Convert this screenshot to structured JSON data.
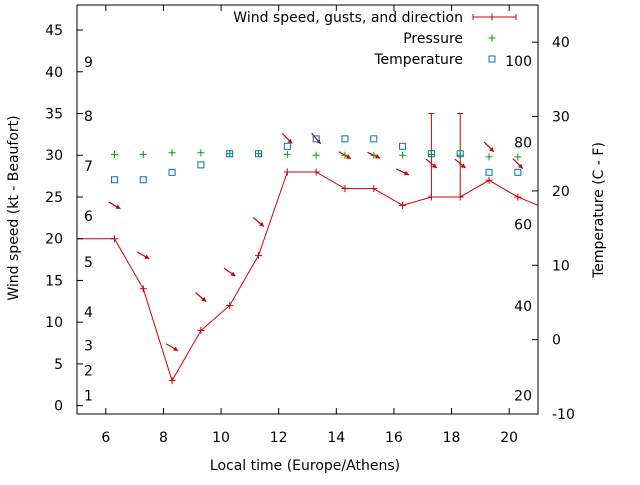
{
  "chart_data": {
    "type": "line",
    "xlabel": "Local time (Europe/Athens)",
    "ylabel": "Wind speed (kt - Beaufort)",
    "y2label": "Temperature (C - F)",
    "xlim": [
      5,
      21
    ],
    "ylim": [
      -1,
      48
    ],
    "y2lim": [
      -10,
      45
    ],
    "grid": false,
    "legend_position": "top-right",
    "xticks": [
      6,
      8,
      10,
      12,
      14,
      16,
      18,
      20
    ],
    "yticks": [
      0,
      5,
      10,
      15,
      20,
      25,
      30,
      35,
      40,
      45
    ],
    "y2ticks": [
      -10,
      0,
      10,
      20,
      30,
      40
    ],
    "beaufort_labels": [
      {
        "text": "1",
        "y": 1.2
      },
      {
        "text": "2",
        "y": 4.2
      },
      {
        "text": "3",
        "y": 7.2
      },
      {
        "text": "4",
        "y": 11.2
      },
      {
        "text": "5",
        "y": 17.2
      },
      {
        "text": "6",
        "y": 22.7
      },
      {
        "text": "7",
        "y": 28.7
      },
      {
        "text": "8",
        "y": 34.7
      },
      {
        "text": "9",
        "y": 41.2
      }
    ],
    "fahrenheit_labels": [
      {
        "text": "20",
        "y2": -7.5
      },
      {
        "text": "40",
        "y2": 4.5
      },
      {
        "text": "60",
        "y2": 15.5
      },
      {
        "text": "80",
        "y2": 26.5
      },
      {
        "text": "100",
        "y2": 37.5
      }
    ],
    "series": [
      {
        "name": "Wind speed, gusts, and direction",
        "color": "#cc0000",
        "x": [
          5,
          6.3,
          7.3,
          8.3,
          9.3,
          10.3,
          11.3,
          12.3,
          13.3,
          14.3,
          15.3,
          16.3,
          17.3,
          18.3,
          19.3,
          20.3,
          21
        ],
        "values": [
          20,
          20,
          14,
          3,
          9,
          12,
          18,
          28,
          28,
          26,
          26,
          24,
          25,
          25,
          27,
          25,
          24
        ],
        "gusts": [
          null,
          null,
          null,
          null,
          null,
          null,
          null,
          null,
          null,
          null,
          null,
          null,
          35,
          35,
          null,
          null,
          null
        ],
        "direction_arrows_deg": [
          null,
          120,
          120,
          120,
          130,
          125,
          130,
          135,
          140,
          120,
          115,
          115,
          130,
          130,
          135,
          135,
          null
        ]
      },
      {
        "name": "Pressure",
        "color": "#00a000",
        "x": [
          6.3,
          7.3,
          8.3,
          9.3,
          10.3,
          11.3,
          12.3,
          13.3,
          14.3,
          15.3,
          16.3,
          17.3,
          18.3,
          19.3,
          20.3
        ],
        "values": [
          30.1,
          30.1,
          30.3,
          30.3,
          30.2,
          30.2,
          30.1,
          30.0,
          30.0,
          30.0,
          30.0,
          30.1,
          30.0,
          29.8,
          29.8
        ]
      },
      {
        "name": "Temperature",
        "color": "#0070c0",
        "x": [
          6.3,
          7.3,
          8.3,
          9.3,
          10.3,
          11.3,
          12.3,
          13.3,
          14.3,
          15.3,
          16.3,
          17.3,
          18.3,
          19.3,
          20.3
        ],
        "values_y2": [
          21.5,
          21.5,
          22.5,
          23.5,
          25,
          25,
          26,
          27,
          27,
          27,
          26,
          25,
          25,
          22.5,
          22.5
        ]
      }
    ]
  }
}
